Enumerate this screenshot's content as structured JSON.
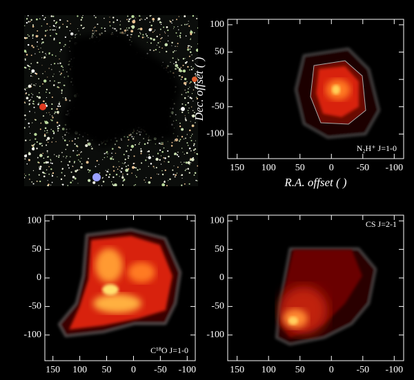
{
  "chart_data": [
    {
      "type": "contour",
      "xlabel": "R.A. offset (  )",
      "ylabel": "Dec. offset (  )",
      "annotation": "N₂H⁺ J=1-0",
      "xlim": [
        165,
        -115
      ],
      "ylim": [
        -145,
        110
      ],
      "xticks": [
        150,
        100,
        50,
        0,
        -50,
        -100
      ],
      "yticks": [
        -100,
        -50,
        0,
        50,
        100
      ]
    },
    {
      "type": "contour",
      "annotation": "C¹⁸O J=1-0",
      "xlim": [
        165,
        -115
      ],
      "ylim": [
        -145,
        110
      ],
      "xticks": [
        150,
        100,
        50,
        0,
        -50,
        -100
      ],
      "yticks": [
        -100,
        -50,
        0,
        50,
        100
      ]
    },
    {
      "type": "contour",
      "annotation": "CS J=2-1",
      "xlim": [
        165,
        -115
      ],
      "ylim": [
        -145,
        110
      ],
      "xticks": [
        150,
        100,
        50,
        0,
        -50,
        -100
      ],
      "yticks": [
        -100,
        -50,
        0,
        50,
        100
      ]
    }
  ]
}
